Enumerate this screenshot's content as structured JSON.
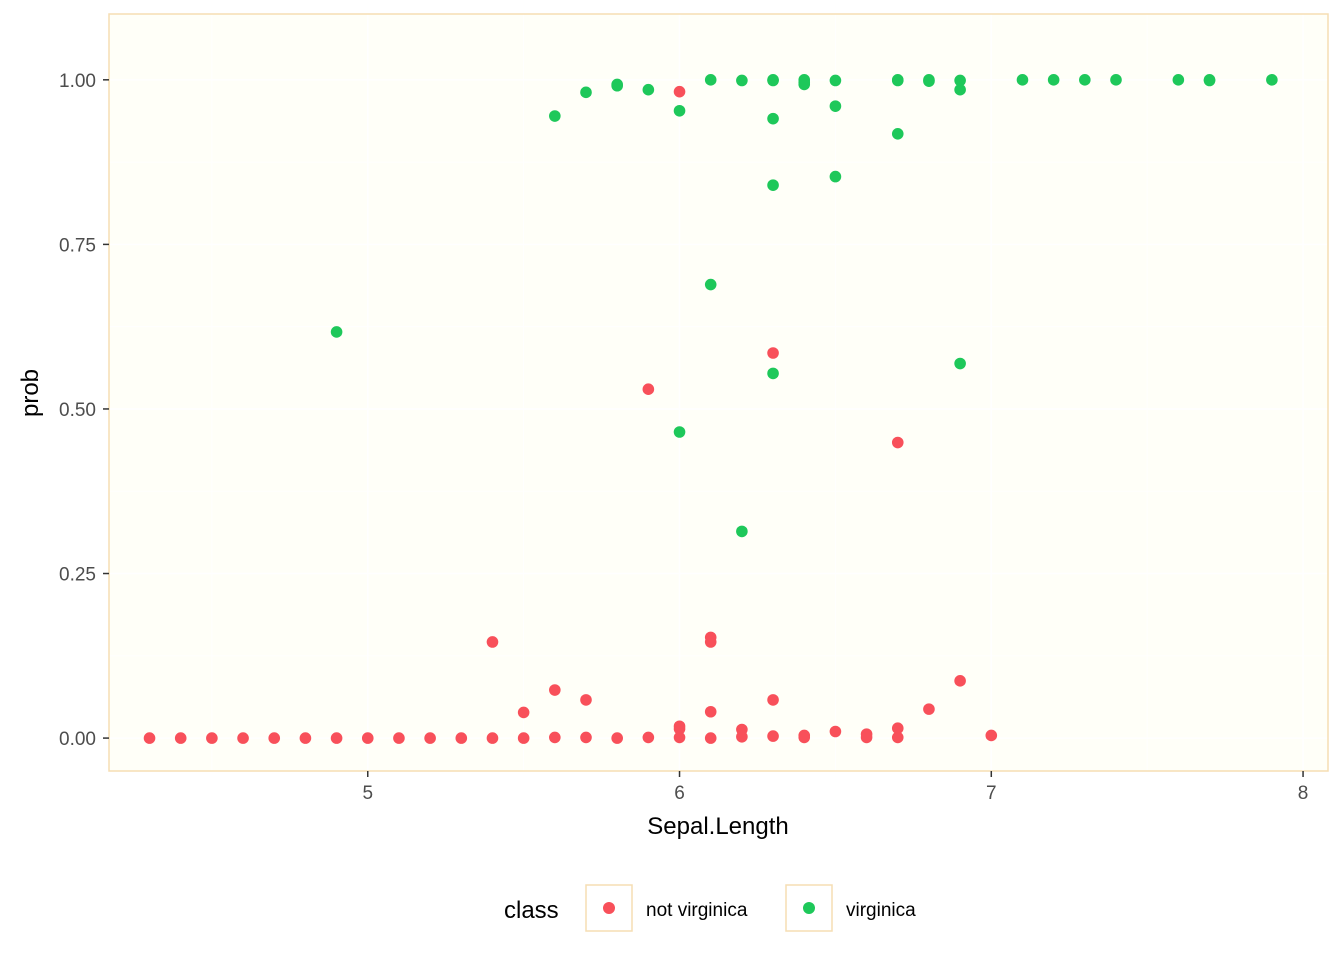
{
  "chart_data": {
    "type": "scatter",
    "title": "",
    "xlabel": "Sepal.Length",
    "ylabel": "prob",
    "xlim": [
      4.17,
      8.08
    ],
    "ylim": [
      -0.05,
      1.1
    ],
    "x_ticks": [
      5,
      6,
      7,
      8
    ],
    "x_tick_labels": [
      "5",
      "6",
      "7",
      "8"
    ],
    "y_ticks": [
      0,
      0.25,
      0.5,
      0.75,
      1.0
    ],
    "y_tick_labels": [
      "0.00",
      "0.25",
      "0.50",
      "0.75",
      "1.00"
    ],
    "grid": true,
    "legend": {
      "position": "bottom",
      "title": "class"
    },
    "colors": {
      "panel_background": "#fffff8",
      "panel_border": "#f5deb3",
      "grid": "#ffffff",
      "tick_label": "#4d4d4d",
      "axis_title": "#000000"
    },
    "series": [
      {
        "name": "not virginica",
        "color": "#f8505a",
        "points": [
          [
            4.3,
            0.0
          ],
          [
            4.4,
            0.0
          ],
          [
            4.5,
            0.0
          ],
          [
            4.6,
            0.0
          ],
          [
            4.7,
            0.0
          ],
          [
            4.8,
            0.0
          ],
          [
            4.9,
            0.0
          ],
          [
            5.0,
            0.0
          ],
          [
            5.1,
            0.0
          ],
          [
            5.2,
            0.0
          ],
          [
            5.3,
            0.0
          ],
          [
            5.4,
            0.0
          ],
          [
            5.4,
            0.146
          ],
          [
            5.5,
            0.0
          ],
          [
            5.5,
            0.039
          ],
          [
            5.6,
            0.001
          ],
          [
            5.6,
            0.073
          ],
          [
            5.7,
            0.001
          ],
          [
            5.7,
            0.058
          ],
          [
            5.8,
            0.0
          ],
          [
            5.9,
            0.001
          ],
          [
            5.9,
            0.53
          ],
          [
            6.0,
            0.001
          ],
          [
            6.0,
            0.014
          ],
          [
            6.0,
            0.018
          ],
          [
            6.0,
            0.982
          ],
          [
            6.1,
            0.0
          ],
          [
            6.1,
            0.04
          ],
          [
            6.1,
            0.146
          ],
          [
            6.1,
            0.153
          ],
          [
            6.2,
            0.002
          ],
          [
            6.2,
            0.013
          ],
          [
            6.3,
            0.003
          ],
          [
            6.3,
            0.058
          ],
          [
            6.3,
            0.585
          ],
          [
            6.4,
            0.001
          ],
          [
            6.4,
            0.004
          ],
          [
            6.5,
            0.01
          ],
          [
            6.6,
            0.001
          ],
          [
            6.6,
            0.006
          ],
          [
            6.7,
            0.001
          ],
          [
            6.7,
            0.015
          ],
          [
            6.7,
            0.449
          ],
          [
            6.8,
            0.044
          ],
          [
            6.9,
            0.087
          ],
          [
            7.0,
            0.004
          ]
        ]
      },
      {
        "name": "virginica",
        "color": "#1ec85a",
        "points": [
          [
            4.9,
            0.617
          ],
          [
            5.6,
            0.945
          ],
          [
            5.7,
            0.981
          ],
          [
            5.8,
            0.991
          ],
          [
            5.8,
            0.993
          ],
          [
            5.9,
            0.985
          ],
          [
            6.0,
            0.953
          ],
          [
            6.0,
            0.465
          ],
          [
            6.1,
            1.0
          ],
          [
            6.1,
            0.689
          ],
          [
            6.2,
            0.999
          ],
          [
            6.2,
            0.314
          ],
          [
            6.3,
            1.0
          ],
          [
            6.3,
            0.999
          ],
          [
            6.3,
            0.941
          ],
          [
            6.3,
            0.84
          ],
          [
            6.3,
            0.554
          ],
          [
            6.4,
            1.0
          ],
          [
            6.4,
            0.996
          ],
          [
            6.4,
            0.993
          ],
          [
            6.5,
            0.999
          ],
          [
            6.5,
            0.96
          ],
          [
            6.5,
            0.853
          ],
          [
            6.7,
            1.0
          ],
          [
            6.7,
            0.999
          ],
          [
            6.7,
            0.918
          ],
          [
            6.8,
            1.0
          ],
          [
            6.8,
            0.998
          ],
          [
            6.9,
            0.999
          ],
          [
            6.9,
            0.985
          ],
          [
            6.9,
            0.569
          ],
          [
            7.1,
            1.0
          ],
          [
            7.2,
            1.0
          ],
          [
            7.3,
            1.0
          ],
          [
            7.4,
            1.0
          ],
          [
            7.6,
            1.0
          ],
          [
            7.7,
            1.0
          ],
          [
            7.7,
            0.999
          ],
          [
            7.9,
            1.0
          ]
        ]
      }
    ]
  }
}
